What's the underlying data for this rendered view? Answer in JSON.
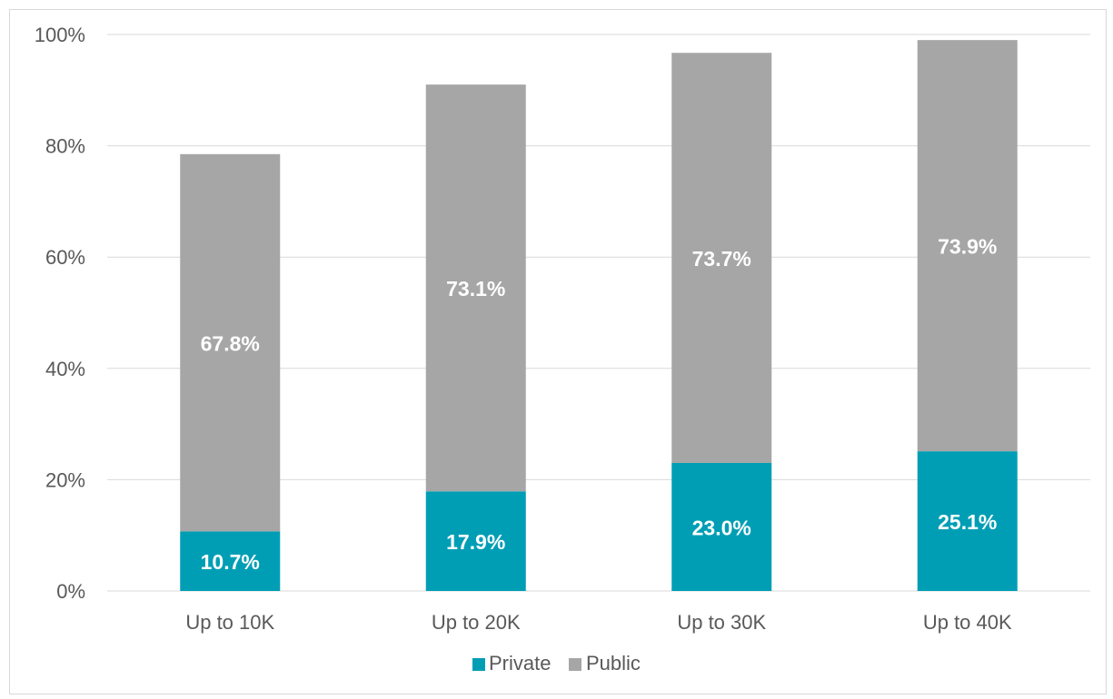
{
  "chart_data": {
    "type": "bar",
    "stacked": true,
    "categories": [
      "Up  to 10K",
      "Up to 20K",
      "Up to 30K",
      "Up to 40K"
    ],
    "series": [
      {
        "name": "Private",
        "values": [
          10.7,
          17.9,
          23.0,
          25.1
        ],
        "labels": [
          "10.7%",
          "17.9%",
          "23.0%",
          "25.1%"
        ],
        "color": "#009eb5"
      },
      {
        "name": "Public",
        "values": [
          67.8,
          73.1,
          73.7,
          73.9
        ],
        "labels": [
          "67.8%",
          "73.1%",
          "73.7%",
          "73.9%"
        ],
        "color": "#a6a6a6"
      }
    ],
    "ylim": [
      0,
      100
    ],
    "yticks": [
      0,
      20,
      40,
      60,
      80,
      100
    ],
    "ytick_labels": [
      "0%",
      "20%",
      "40%",
      "60%",
      "80%",
      "100%"
    ],
    "grid": true,
    "legend": "bottom-center",
    "title": "",
    "xlabel": "",
    "ylabel": ""
  },
  "colors": {
    "grid": "#d9d9d9",
    "text": "#595959",
    "label": "#ffffff"
  }
}
